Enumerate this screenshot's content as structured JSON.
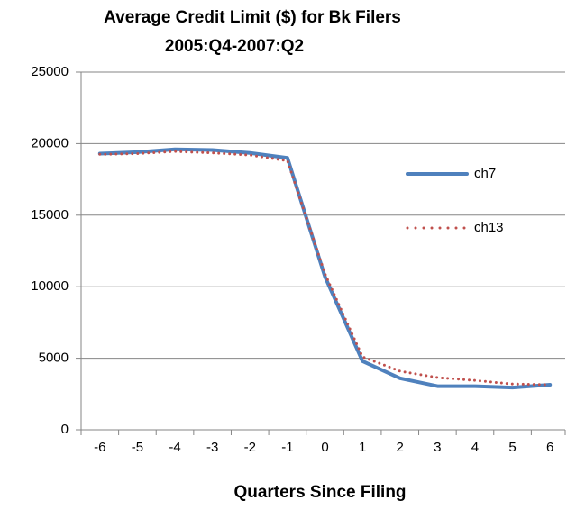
{
  "chart_data": {
    "type": "line",
    "title": "Average Credit Limit ($) for Bk Filers",
    "subtitle": "2005:Q4-2007:Q2",
    "x_label": "Quarters Since Filing",
    "categories": [
      "-6",
      "-5",
      "-4",
      "-3",
      "-2",
      "-1",
      "0",
      "1",
      "2",
      "3",
      "4",
      "5",
      "6"
    ],
    "series": [
      {
        "name": "ch7",
        "color": "#4f81bd",
        "style": "solid",
        "values": [
          19300,
          19400,
          19600,
          19550,
          19350,
          19000,
          10700,
          4800,
          3600,
          3050,
          3050,
          2950,
          3150
        ]
      },
      {
        "name": "ch13",
        "color": "#c0504d",
        "style": "dotted",
        "values": [
          19250,
          19300,
          19450,
          19350,
          19200,
          18800,
          10900,
          5100,
          4100,
          3650,
          3450,
          3200,
          3150
        ]
      }
    ],
    "ylim": [
      0,
      25000
    ],
    "yticks": [
      0,
      5000,
      10000,
      15000,
      20000,
      25000
    ],
    "grid": true,
    "legend": "right"
  }
}
